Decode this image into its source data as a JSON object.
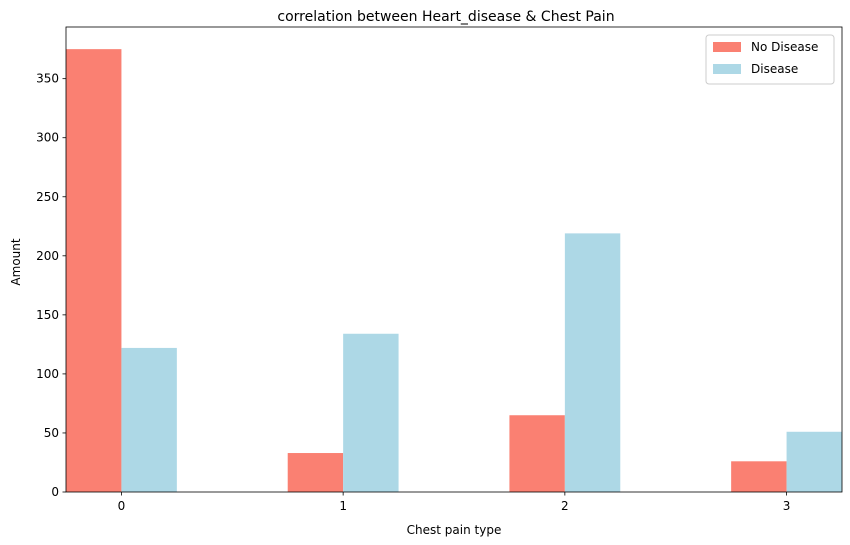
{
  "chart_data": {
    "type": "bar",
    "title": "correlation between Heart_disease & Chest Pain",
    "xlabel": "Chest pain type",
    "ylabel": "Amount",
    "categories": [
      "0",
      "1",
      "2",
      "3"
    ],
    "series": [
      {
        "name": "No Disease",
        "color": "#fa8072",
        "values": [
          375,
          33,
          65,
          26
        ]
      },
      {
        "name": "Disease",
        "color": "#add8e6",
        "values": [
          122,
          134,
          219,
          51
        ]
      }
    ],
    "ylim": [
      0,
      393.75
    ],
    "yticks": [
      0,
      50,
      100,
      150,
      200,
      250,
      300,
      350
    ],
    "grid": false,
    "legend": "top-right"
  }
}
